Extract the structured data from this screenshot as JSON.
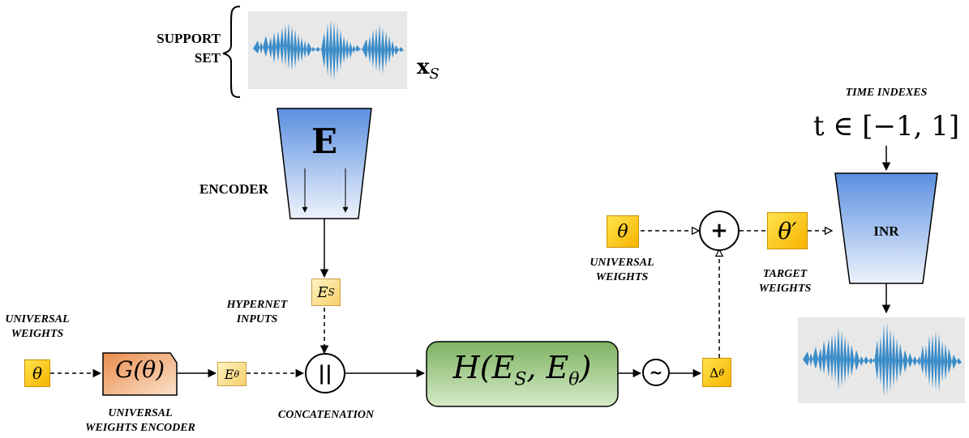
{
  "support_set": {
    "label_line1": "SUPPORT",
    "label_line2": "SET",
    "symbol": "x",
    "symbol_sub": "S"
  },
  "encoder": {
    "label": "ENCODER",
    "letter": "E"
  },
  "hypernet_inputs": {
    "line1": "HYPERNET",
    "line2": "INPUTS"
  },
  "left_weights": {
    "line1": "UNIVERSAL",
    "line2": "WEIGHTS",
    "symbol": "θ"
  },
  "weights_encoder": {
    "text": "G(θ)",
    "line1": "UNIVERSAL",
    "line2": "WEIGHTS ENCODER"
  },
  "e_theta": {
    "base": "E",
    "sub": "θ"
  },
  "e_s": {
    "base": "E",
    "sub": "S"
  },
  "concatenation": {
    "symbol": "||",
    "label": "CONCATENATION"
  },
  "hypernet": {
    "text_prefix": "H(E",
    "sub1": "S",
    "text_mid": ", E",
    "sub2": "θ",
    "text_suffix": ")"
  },
  "tilde": {
    "symbol": "~"
  },
  "delta": {
    "base": "Δ",
    "sub": "θ"
  },
  "plus": {
    "symbol": "+"
  },
  "right_weights": {
    "symbol": "θ",
    "line1": "UNIVERSAL",
    "line2": "WEIGHTS"
  },
  "target_weights": {
    "symbol": "θ′",
    "line1": "TARGET",
    "line2": "WEIGHTS"
  },
  "time_indexes": {
    "label": "TIME INDEXES",
    "formula": "t ∈ [−1, 1]"
  },
  "inr": {
    "label": "INR"
  },
  "colors": {
    "yellow": "#f7c600",
    "waveform": "#3b8cc9",
    "encoder_top": "#5a8fe0",
    "hypernet_green": "#8fbf78"
  }
}
